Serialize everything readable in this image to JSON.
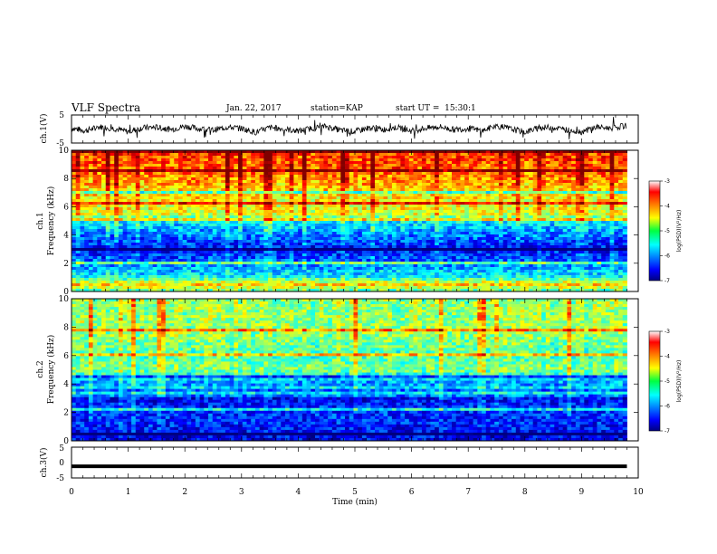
{
  "header": {
    "title": "VLF Spectra",
    "date": "Jan. 22, 2017",
    "station": "station=KAP",
    "start": "start UT =  15:30:1"
  },
  "chart_data": [
    {
      "type": "line",
      "name": "ch1-waveform",
      "ylabel": "ch.1(V)",
      "ylim": [
        -5,
        5
      ],
      "yticks": [
        "5",
        "-5"
      ],
      "xlim": [
        0,
        10
      ],
      "x": [
        0,
        0.25,
        0.5,
        0.75,
        1,
        1.25,
        1.5,
        1.75,
        2,
        2.25,
        2.5,
        2.75,
        3,
        3.25,
        3.5,
        3.75,
        4,
        4.25,
        4.5,
        4.75,
        5,
        5.25,
        5.5,
        5.75,
        6,
        6.25,
        6.5,
        6.75,
        7,
        7.25,
        7.5,
        7.75,
        8,
        8.25,
        8.5,
        8.75,
        9,
        9.25,
        9.5,
        9.8
      ],
      "y": [
        0.3,
        -0.6,
        0.8,
        0.2,
        -1.0,
        0.4,
        0.6,
        -0.2,
        1.0,
        0.1,
        -0.4,
        0.7,
        0.2,
        -1.2,
        0.5,
        0.0,
        -0.8,
        0.3,
        0.9,
        -0.5,
        -0.9,
        0.4,
        -0.2,
        0.6,
        -0.7,
        0.3,
        0.8,
        -0.3,
        0.2,
        -0.6,
        1.1,
        0.0,
        -1.1,
        0.4,
        0.6,
        -0.4,
        -1.0,
        0.7,
        0.3,
        1.2
      ]
    },
    {
      "type": "heatmap",
      "name": "ch1-spectrogram",
      "ylabel": "ch.1\nFrequency (kHz)",
      "ylim": [
        0,
        10
      ],
      "xlim": [
        0,
        10
      ],
      "yticks": [
        "0",
        "2",
        "4",
        "6",
        "8",
        "10"
      ],
      "colorbar": {
        "label": "log(PSD)(V²/Hz)",
        "ticks": [
          "-3",
          "-4",
          "-5",
          "-6",
          "-7"
        ],
        "range": [
          -7,
          -3
        ]
      },
      "level_by_freq_khz": [
        {
          "f": 0.0,
          "v": -5.2
        },
        {
          "f": 0.5,
          "v": -4.3
        },
        {
          "f": 1.0,
          "v": -5.5
        },
        {
          "f": 2.0,
          "v": -6.0
        },
        {
          "f": 3.0,
          "v": -6.5
        },
        {
          "f": 4.0,
          "v": -6.0
        },
        {
          "f": 5.0,
          "v": -5.5
        },
        {
          "f": 5.5,
          "v": -4.6
        },
        {
          "f": 7.0,
          "v": -4.4
        },
        {
          "f": 8.5,
          "v": -3.9
        },
        {
          "f": 10.0,
          "v": -3.7
        }
      ]
    },
    {
      "type": "heatmap",
      "name": "ch2-spectrogram",
      "ylabel": "ch.2\nFrequency (kHz)",
      "ylim": [
        0,
        10
      ],
      "xlim": [
        0,
        10
      ],
      "yticks": [
        "0",
        "2",
        "4",
        "6",
        "8",
        "10"
      ],
      "colorbar": {
        "label": "log(PSD)(V²/Hz)",
        "ticks": [
          "-3",
          "-4",
          "-5",
          "-6",
          "-7"
        ],
        "range": [
          -7,
          -3
        ]
      },
      "level_by_freq_khz": [
        {
          "f": 0.0,
          "v": -6.6
        },
        {
          "f": 1.0,
          "v": -6.4
        },
        {
          "f": 2.0,
          "v": -6.3
        },
        {
          "f": 3.0,
          "v": -6.5
        },
        {
          "f": 3.5,
          "v": -5.2
        },
        {
          "f": 4.0,
          "v": -6.0
        },
        {
          "f": 5.0,
          "v": -5.0
        },
        {
          "f": 6.0,
          "v": -5.2
        },
        {
          "f": 7.5,
          "v": -4.9
        },
        {
          "f": 10.0,
          "v": -4.9
        }
      ]
    },
    {
      "type": "line",
      "name": "ch3-waveform",
      "ylabel": "ch.3(V)",
      "ylim": [
        -5,
        5
      ],
      "yticks": [
        "5",
        "0",
        "-5"
      ],
      "xlim": [
        0,
        10
      ],
      "x": [
        0,
        9.8
      ],
      "y": [
        -1.2,
        -1.2
      ],
      "xlabel": "Time (min)",
      "xticks": [
        "0",
        "1",
        "2",
        "3",
        "4",
        "5",
        "6",
        "7",
        "8",
        "9",
        "10"
      ]
    }
  ]
}
